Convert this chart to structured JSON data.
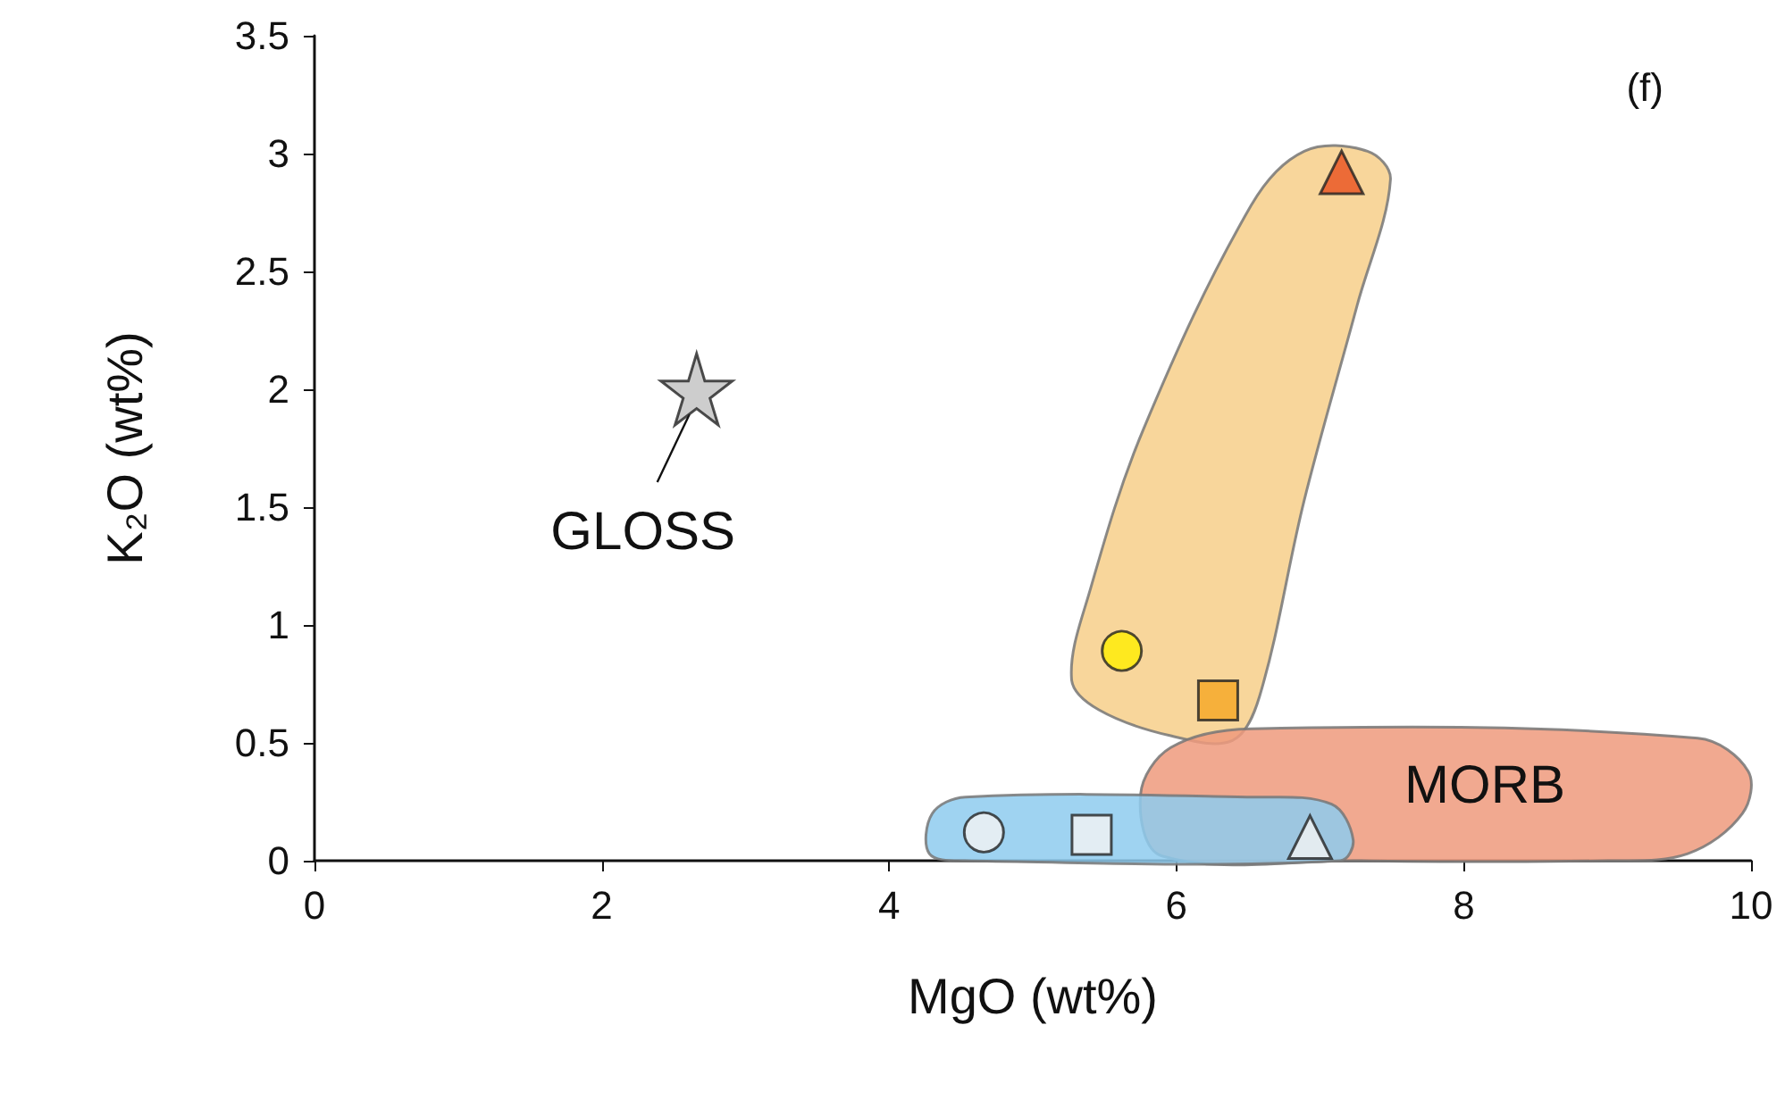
{
  "chart_data": {
    "type": "scatter",
    "xlabel": "MgO (wt%)",
    "ylabel": "K₂O (wt%)",
    "xlim": [
      0,
      10
    ],
    "xticks": [
      0,
      2,
      4,
      6,
      8,
      10
    ],
    "ylim": [
      0,
      3.5
    ],
    "yticks": [
      0,
      0.5,
      1,
      1.5,
      2,
      2.5,
      3,
      3.5
    ],
    "grid": false,
    "annotations": [
      "(f)",
      {
        "text": "GLOSS",
        "x": 2.66,
        "y": 2.0
      },
      "MORB"
    ],
    "series": [
      {
        "type": "area",
        "color": "#f7cf8a",
        "x": [
          5.27,
          5.4,
          5.77,
          6.52,
          6.89,
          7.33,
          7.49,
          7.26,
          6.89,
          6.58,
          6.39,
          5.96,
          5.46
        ],
        "values": [
          0.77,
          1.15,
          1.83,
          2.78,
          3.01,
          3.01,
          2.89,
          2.36,
          1.53,
          0.7,
          0.51,
          0.53,
          0.64
        ]
      },
      {
        "type": "area",
        "color": "#ee9a7c",
        "x": [
          5.75,
          5.96,
          6.52,
          9.63,
          9.98,
          9.94,
          9.56,
          9.0,
          7.26,
          5.9
        ],
        "values": [
          0.28,
          0.48,
          0.56,
          0.52,
          0.38,
          0.2,
          0.03,
          0,
          0,
          0.02
        ]
      },
      {
        "type": "area",
        "color": "#8ecbee",
        "x": [
          4.3,
          4.53,
          6.52,
          7.08,
          7.23,
          7.14,
          4.53,
          4.28
        ],
        "values": [
          0.2,
          0.27,
          0.27,
          0.24,
          0.09,
          0,
          0,
          0.03
        ]
      },
      {
        "marker": "star",
        "color": "#c0c0c0",
        "x": [
          2.66
        ],
        "values": [
          2.0
        ]
      },
      {
        "marker": "circle",
        "color": "#ffee00",
        "x": [
          5.62
        ],
        "values": [
          0.89
        ]
      },
      {
        "marker": "square",
        "color": "#f5a623",
        "x": [
          6.29
        ],
        "values": [
          0.68
        ]
      },
      {
        "marker": "triangle",
        "color": "#e8501e",
        "x": [
          7.15
        ],
        "values": [
          2.92
        ]
      },
      {
        "marker": "circle",
        "color": "#f4f4f4",
        "x": [
          4.66
        ],
        "values": [
          0.12
        ]
      },
      {
        "marker": "square",
        "color": "#f4f4f4",
        "x": [
          5.41
        ],
        "values": [
          0.11
        ]
      },
      {
        "marker": "triangle",
        "color": "#f4f4f4",
        "x": [
          6.93
        ],
        "values": [
          0.1
        ]
      }
    ]
  }
}
